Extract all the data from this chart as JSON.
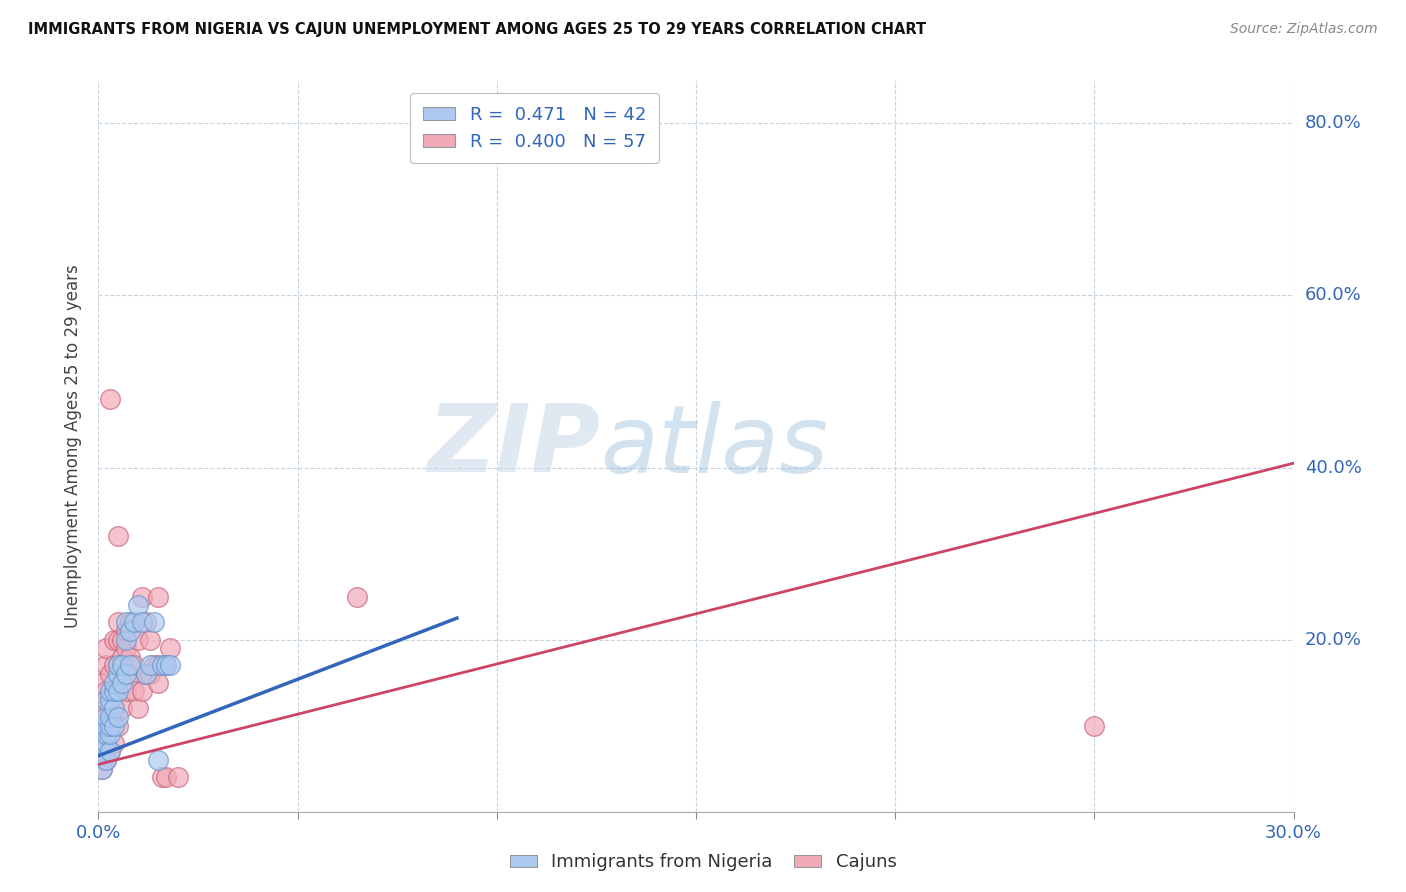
{
  "title": "IMMIGRANTS FROM NIGERIA VS CAJUN UNEMPLOYMENT AMONG AGES 25 TO 29 YEARS CORRELATION CHART",
  "source": "Source: ZipAtlas.com",
  "ylabel": "Unemployment Among Ages 25 to 29 years",
  "xmin": 0.0,
  "xmax": 0.3,
  "ymin": 0.0,
  "ymax": 0.85,
  "ytick_positions": [
    0.0,
    0.2,
    0.4,
    0.6,
    0.8
  ],
  "right_yticklabels": [
    "",
    "20.0%",
    "40.0%",
    "60.0%",
    "80.0%"
  ],
  "xticks": [
    0.0,
    0.05,
    0.1,
    0.15,
    0.2,
    0.25,
    0.3
  ],
  "xticklabels": [
    "0.0%",
    "",
    "",
    "",
    "",
    "",
    "30.0%"
  ],
  "legend_entries": [
    {
      "label": "R =  0.471   N = 42",
      "color": "#adc9f0"
    },
    {
      "label": "R =  0.400   N = 57",
      "color": "#f0aab8"
    }
  ],
  "bottom_legend": [
    {
      "label": "Immigrants from Nigeria",
      "color": "#adc9f0"
    },
    {
      "label": "Cajuns",
      "color": "#f0aab8"
    }
  ],
  "watermark_zip": "ZIP",
  "watermark_atlas": "atlas",
  "blue_color_fill": "#adc9f0",
  "blue_color_edge": "#6699cc",
  "pink_color_fill": "#f0aab8",
  "pink_color_edge": "#cc6680",
  "blue_line_color": "#3366bb",
  "pink_line_color": "#cc4466",
  "background_color": "#ffffff",
  "grid_color": "#c8d4e0",
  "title_color": "#111111",
  "axis_tick_color": "#3366bb",
  "ylabel_color": "#444444",
  "blue_scatter": [
    [
      0.001,
      0.05
    ],
    [
      0.001,
      0.07
    ],
    [
      0.001,
      0.08
    ],
    [
      0.001,
      0.09
    ],
    [
      0.001,
      0.1
    ],
    [
      0.002,
      0.06
    ],
    [
      0.002,
      0.08
    ],
    [
      0.002,
      0.09
    ],
    [
      0.002,
      0.1
    ],
    [
      0.002,
      0.11
    ],
    [
      0.002,
      0.13
    ],
    [
      0.003,
      0.07
    ],
    [
      0.003,
      0.09
    ],
    [
      0.003,
      0.1
    ],
    [
      0.003,
      0.11
    ],
    [
      0.003,
      0.13
    ],
    [
      0.003,
      0.14
    ],
    [
      0.004,
      0.1
    ],
    [
      0.004,
      0.12
    ],
    [
      0.004,
      0.14
    ],
    [
      0.004,
      0.15
    ],
    [
      0.005,
      0.11
    ],
    [
      0.005,
      0.14
    ],
    [
      0.005,
      0.16
    ],
    [
      0.005,
      0.17
    ],
    [
      0.006,
      0.15
    ],
    [
      0.006,
      0.17
    ],
    [
      0.007,
      0.2
    ],
    [
      0.007,
      0.22
    ],
    [
      0.007,
      0.16
    ],
    [
      0.008,
      0.17
    ],
    [
      0.008,
      0.21
    ],
    [
      0.009,
      0.22
    ],
    [
      0.01,
      0.24
    ],
    [
      0.011,
      0.22
    ],
    [
      0.012,
      0.16
    ],
    [
      0.013,
      0.17
    ],
    [
      0.014,
      0.22
    ],
    [
      0.015,
      0.06
    ],
    [
      0.016,
      0.17
    ],
    [
      0.017,
      0.17
    ],
    [
      0.018,
      0.17
    ]
  ],
  "pink_scatter": [
    [
      0.001,
      0.05
    ],
    [
      0.001,
      0.07
    ],
    [
      0.001,
      0.09
    ],
    [
      0.001,
      0.13
    ],
    [
      0.001,
      0.15
    ],
    [
      0.002,
      0.06
    ],
    [
      0.002,
      0.08
    ],
    [
      0.002,
      0.1
    ],
    [
      0.002,
      0.12
    ],
    [
      0.002,
      0.14
    ],
    [
      0.002,
      0.17
    ],
    [
      0.002,
      0.19
    ],
    [
      0.003,
      0.07
    ],
    [
      0.003,
      0.1
    ],
    [
      0.003,
      0.12
    ],
    [
      0.003,
      0.16
    ],
    [
      0.003,
      0.48
    ],
    [
      0.004,
      0.08
    ],
    [
      0.004,
      0.12
    ],
    [
      0.004,
      0.14
    ],
    [
      0.004,
      0.17
    ],
    [
      0.004,
      0.2
    ],
    [
      0.005,
      0.1
    ],
    [
      0.005,
      0.17
    ],
    [
      0.005,
      0.2
    ],
    [
      0.005,
      0.22
    ],
    [
      0.005,
      0.32
    ],
    [
      0.006,
      0.12
    ],
    [
      0.006,
      0.18
    ],
    [
      0.006,
      0.2
    ],
    [
      0.007,
      0.14
    ],
    [
      0.007,
      0.19
    ],
    [
      0.007,
      0.21
    ],
    [
      0.008,
      0.16
    ],
    [
      0.008,
      0.18
    ],
    [
      0.008,
      0.22
    ],
    [
      0.009,
      0.14
    ],
    [
      0.009,
      0.17
    ],
    [
      0.01,
      0.12
    ],
    [
      0.01,
      0.2
    ],
    [
      0.011,
      0.14
    ],
    [
      0.011,
      0.25
    ],
    [
      0.012,
      0.16
    ],
    [
      0.012,
      0.22
    ],
    [
      0.013,
      0.16
    ],
    [
      0.013,
      0.2
    ],
    [
      0.014,
      0.17
    ],
    [
      0.015,
      0.15
    ],
    [
      0.015,
      0.17
    ],
    [
      0.015,
      0.25
    ],
    [
      0.016,
      0.04
    ],
    [
      0.017,
      0.04
    ],
    [
      0.017,
      0.17
    ],
    [
      0.018,
      0.19
    ],
    [
      0.02,
      0.04
    ],
    [
      0.065,
      0.25
    ],
    [
      0.25,
      0.1
    ]
  ],
  "blue_line": [
    [
      0.0,
      0.065
    ],
    [
      0.09,
      0.225
    ]
  ],
  "pink_line": [
    [
      0.0,
      0.055
    ],
    [
      0.3,
      0.405
    ]
  ]
}
